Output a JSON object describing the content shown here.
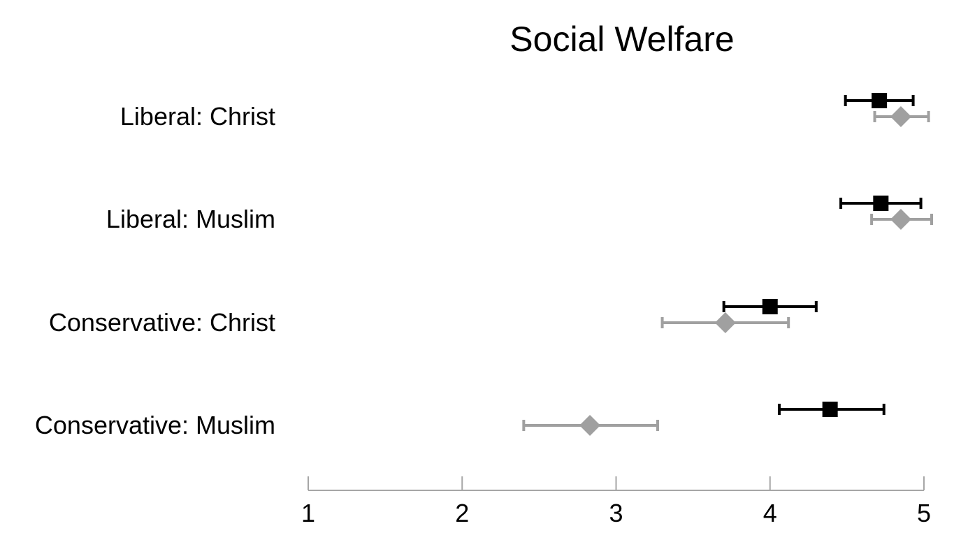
{
  "chart_data": {
    "type": "scatter",
    "title": "Social Welfare",
    "xlabel": "",
    "ylabel": "",
    "xlim": [
      1,
      5
    ],
    "xticks": [
      "1",
      "2",
      "3",
      "4",
      "5"
    ],
    "grid": false,
    "categories": [
      "Liberal: Christ",
      "Liberal: Muslim",
      "Conservative: Christ",
      "Conservative: Muslim"
    ],
    "series": [
      {
        "marker": "square",
        "color": "#000000",
        "values": [
          4.71,
          4.72,
          4.0,
          4.39
        ],
        "lower": [
          4.49,
          4.46,
          3.7,
          4.06
        ],
        "upper": [
          4.93,
          4.98,
          4.3,
          4.74
        ]
      },
      {
        "marker": "diamond",
        "color": "#A0A0A0",
        "values": [
          4.85,
          4.85,
          3.71,
          2.83
        ],
        "lower": [
          4.68,
          4.66,
          3.3,
          2.4
        ],
        "upper": [
          5.03,
          5.05,
          4.12,
          3.27
        ]
      }
    ]
  }
}
